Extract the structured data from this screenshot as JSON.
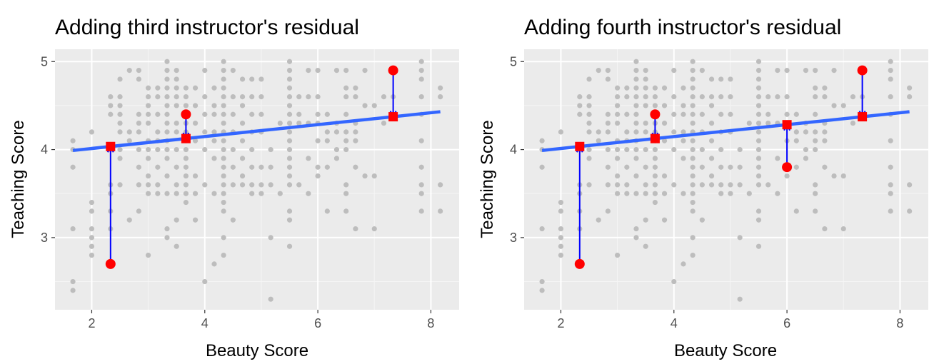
{
  "colors": {
    "panel_background": "#ebebeb",
    "grid_major": "#ffffff",
    "grid_minor": "#f5f5f5",
    "points": "#bdbdbd",
    "regression_line": "#3366ff",
    "residual_arrow": "#0000ff",
    "observed_marker": "#ff0000",
    "fitted_marker": "#ff0000"
  },
  "chart_data": [
    {
      "type": "scatter",
      "title": "Adding third instructor's residual",
      "xlabel": "Beauty Score",
      "ylabel": "Teaching Score",
      "xlim": [
        1.35,
        8.5
      ],
      "ylim": [
        2.18,
        5.14
      ],
      "xticks": [
        2,
        4,
        6,
        8
      ],
      "yticks": [
        3,
        4,
        5
      ],
      "grid": true,
      "regression_line": {
        "x": [
          1.667,
          8.167
        ],
        "y": [
          3.99,
          4.43
        ]
      },
      "highlight_observed": [
        {
          "x": 2.333,
          "y": 2.7
        },
        {
          "x": 3.667,
          "y": 4.4
        },
        {
          "x": 7.333,
          "y": 4.9
        }
      ],
      "highlight_fitted": [
        {
          "x": 2.333,
          "y": 4.035
        },
        {
          "x": 3.667,
          "y": 4.125
        },
        {
          "x": 7.333,
          "y": 4.373
        }
      ],
      "points": [
        [
          1.667,
          2.4
        ],
        [
          1.667,
          2.5
        ],
        [
          1.667,
          3.1
        ],
        [
          1.667,
          3.8
        ],
        [
          1.667,
          4.0
        ],
        [
          1.667,
          4.1
        ],
        [
          2.0,
          2.8
        ],
        [
          2.0,
          2.9
        ],
        [
          2.0,
          3.0
        ],
        [
          2.0,
          3.1
        ],
        [
          2.0,
          3.3
        ],
        [
          2.0,
          3.4
        ],
        [
          2.0,
          4.2
        ],
        [
          2.333,
          3.1
        ],
        [
          2.333,
          3.3
        ],
        [
          2.333,
          3.5
        ],
        [
          2.333,
          3.6
        ],
        [
          2.333,
          4.0
        ],
        [
          2.333,
          4.4
        ],
        [
          2.333,
          4.5
        ],
        [
          2.333,
          4.6
        ],
        [
          2.5,
          3.6
        ],
        [
          2.5,
          3.9
        ],
        [
          2.5,
          4.0
        ],
        [
          2.5,
          4.2
        ],
        [
          2.5,
          4.3
        ],
        [
          2.5,
          4.4
        ],
        [
          2.5,
          4.5
        ],
        [
          2.5,
          4.6
        ],
        [
          2.5,
          4.8
        ],
        [
          2.667,
          3.2
        ],
        [
          2.667,
          4.1
        ],
        [
          2.667,
          4.2
        ],
        [
          2.667,
          4.9
        ],
        [
          2.833,
          3.3
        ],
        [
          2.833,
          3.6
        ],
        [
          2.833,
          3.8
        ],
        [
          2.833,
          4.0
        ],
        [
          2.833,
          4.2
        ],
        [
          2.833,
          4.3
        ],
        [
          2.833,
          4.4
        ],
        [
          2.833,
          4.8
        ],
        [
          2.833,
          4.9
        ],
        [
          3.0,
          2.8
        ],
        [
          3.0,
          3.5
        ],
        [
          3.0,
          3.6
        ],
        [
          3.0,
          3.7
        ],
        [
          3.0,
          3.9
        ],
        [
          3.0,
          4.0
        ],
        [
          3.0,
          4.1
        ],
        [
          3.0,
          4.3
        ],
        [
          3.0,
          4.4
        ],
        [
          3.0,
          4.5
        ],
        [
          3.0,
          4.6
        ],
        [
          3.0,
          4.7
        ],
        [
          3.167,
          3.5
        ],
        [
          3.167,
          3.6
        ],
        [
          3.167,
          3.8
        ],
        [
          3.167,
          4.0
        ],
        [
          3.167,
          4.1
        ],
        [
          3.167,
          4.2
        ],
        [
          3.167,
          4.4
        ],
        [
          3.167,
          4.6
        ],
        [
          3.167,
          4.7
        ],
        [
          3.333,
          3.0
        ],
        [
          3.333,
          3.1
        ],
        [
          3.333,
          3.5
        ],
        [
          3.333,
          3.7
        ],
        [
          3.333,
          3.9
        ],
        [
          3.333,
          4.0
        ],
        [
          3.333,
          4.1
        ],
        [
          3.333,
          4.2
        ],
        [
          3.333,
          4.3
        ],
        [
          3.333,
          4.4
        ],
        [
          3.333,
          4.5
        ],
        [
          3.333,
          4.6
        ],
        [
          3.333,
          4.7
        ],
        [
          3.333,
          4.8
        ],
        [
          3.333,
          4.9
        ],
        [
          3.333,
          5.0
        ],
        [
          3.5,
          2.9
        ],
        [
          3.5,
          3.2
        ],
        [
          3.5,
          3.5
        ],
        [
          3.5,
          3.6
        ],
        [
          3.5,
          3.8
        ],
        [
          3.5,
          4.0
        ],
        [
          3.5,
          4.2
        ],
        [
          3.5,
          4.3
        ],
        [
          3.5,
          4.5
        ],
        [
          3.5,
          4.6
        ],
        [
          3.5,
          4.7
        ],
        [
          3.5,
          4.8
        ],
        [
          3.5,
          4.9
        ],
        [
          3.667,
          3.4
        ],
        [
          3.667,
          3.5
        ],
        [
          3.667,
          3.6
        ],
        [
          3.667,
          3.7
        ],
        [
          3.667,
          3.8
        ],
        [
          3.667,
          3.9
        ],
        [
          3.667,
          4.0
        ],
        [
          3.667,
          4.1
        ],
        [
          3.667,
          4.2
        ],
        [
          3.667,
          4.3
        ],
        [
          3.667,
          4.5
        ],
        [
          3.667,
          4.6
        ],
        [
          3.667,
          4.7
        ],
        [
          3.833,
          3.2
        ],
        [
          3.833,
          3.5
        ],
        [
          3.833,
          3.7
        ],
        [
          3.833,
          4.1
        ],
        [
          3.833,
          4.3
        ],
        [
          3.833,
          4.5
        ],
        [
          3.833,
          4.7
        ],
        [
          4.0,
          2.5
        ],
        [
          4.0,
          3.6
        ],
        [
          4.0,
          4.0
        ],
        [
          4.0,
          4.2
        ],
        [
          4.0,
          4.4
        ],
        [
          4.0,
          4.6
        ],
        [
          4.0,
          4.9
        ],
        [
          4.167,
          2.7
        ],
        [
          4.167,
          3.5
        ],
        [
          4.167,
          3.9
        ],
        [
          4.167,
          4.1
        ],
        [
          4.167,
          4.2
        ],
        [
          4.167,
          4.4
        ],
        [
          4.167,
          4.5
        ],
        [
          4.167,
          4.7
        ],
        [
          4.333,
          2.8
        ],
        [
          4.333,
          3.0
        ],
        [
          4.333,
          3.3
        ],
        [
          4.333,
          3.4
        ],
        [
          4.333,
          3.5
        ],
        [
          4.333,
          3.6
        ],
        [
          4.333,
          3.7
        ],
        [
          4.333,
          3.8
        ],
        [
          4.333,
          3.9
        ],
        [
          4.333,
          4.0
        ],
        [
          4.333,
          4.1
        ],
        [
          4.333,
          4.2
        ],
        [
          4.333,
          4.3
        ],
        [
          4.333,
          4.4
        ],
        [
          4.333,
          4.5
        ],
        [
          4.333,
          4.6
        ],
        [
          4.333,
          4.7
        ],
        [
          4.333,
          4.8
        ],
        [
          4.333,
          4.9
        ],
        [
          4.333,
          5.0
        ],
        [
          4.5,
          3.2
        ],
        [
          4.5,
          3.6
        ],
        [
          4.5,
          3.8
        ],
        [
          4.5,
          4.0
        ],
        [
          4.5,
          4.2
        ],
        [
          4.5,
          4.4
        ],
        [
          4.5,
          4.6
        ],
        [
          4.5,
          4.9
        ],
        [
          4.667,
          3.6
        ],
        [
          4.667,
          3.7
        ],
        [
          4.667,
          3.9
        ],
        [
          4.667,
          4.1
        ],
        [
          4.667,
          4.3
        ],
        [
          4.667,
          4.5
        ],
        [
          4.667,
          4.6
        ],
        [
          4.667,
          4.8
        ],
        [
          4.833,
          3.5
        ],
        [
          4.833,
          3.6
        ],
        [
          4.833,
          3.8
        ],
        [
          4.833,
          4.0
        ],
        [
          4.833,
          4.2
        ],
        [
          4.833,
          4.4
        ],
        [
          4.833,
          4.6
        ],
        [
          4.833,
          4.8
        ],
        [
          5.0,
          3.5
        ],
        [
          5.0,
          3.6
        ],
        [
          5.0,
          3.8
        ],
        [
          5.0,
          4.2
        ],
        [
          5.0,
          4.4
        ],
        [
          5.0,
          4.6
        ],
        [
          5.0,
          4.8
        ],
        [
          5.167,
          2.3
        ],
        [
          5.167,
          3.0
        ],
        [
          5.167,
          3.6
        ],
        [
          5.167,
          3.8
        ],
        [
          5.167,
          4.0
        ],
        [
          5.333,
          3.5
        ],
        [
          5.333,
          4.3
        ],
        [
          5.5,
          2.9
        ],
        [
          5.5,
          3.2
        ],
        [
          5.5,
          3.3
        ],
        [
          5.5,
          3.6
        ],
        [
          5.5,
          3.7
        ],
        [
          5.5,
          3.8
        ],
        [
          5.5,
          3.9
        ],
        [
          5.5,
          4.0
        ],
        [
          5.5,
          4.1
        ],
        [
          5.5,
          4.2
        ],
        [
          5.5,
          4.3
        ],
        [
          5.5,
          4.4
        ],
        [
          5.5,
          4.5
        ],
        [
          5.5,
          4.6
        ],
        [
          5.5,
          4.7
        ],
        [
          5.5,
          4.8
        ],
        [
          5.5,
          4.9
        ],
        [
          5.5,
          5.0
        ],
        [
          5.667,
          3.6
        ],
        [
          5.667,
          4.3
        ],
        [
          5.667,
          4.4
        ],
        [
          5.667,
          4.6
        ],
        [
          5.833,
          3.5
        ],
        [
          5.833,
          3.9
        ],
        [
          5.833,
          4.3
        ],
        [
          5.833,
          4.6
        ],
        [
          5.833,
          4.9
        ],
        [
          6.0,
          3.7
        ],
        [
          6.0,
          3.8
        ],
        [
          6.0,
          4.1
        ],
        [
          6.0,
          4.3
        ],
        [
          6.0,
          4.4
        ],
        [
          6.0,
          4.6
        ],
        [
          6.0,
          4.9
        ],
        [
          6.167,
          3.3
        ],
        [
          6.167,
          3.8
        ],
        [
          6.167,
          4.1
        ],
        [
          6.167,
          4.2
        ],
        [
          6.167,
          4.4
        ],
        [
          6.333,
          3.9
        ],
        [
          6.333,
          4.0
        ],
        [
          6.333,
          4.2
        ],
        [
          6.333,
          4.3
        ],
        [
          6.333,
          4.9
        ],
        [
          6.5,
          3.3
        ],
        [
          6.5,
          3.5
        ],
        [
          6.5,
          3.6
        ],
        [
          6.5,
          4.0
        ],
        [
          6.5,
          4.1
        ],
        [
          6.5,
          4.2
        ],
        [
          6.5,
          4.4
        ],
        [
          6.5,
          4.6
        ],
        [
          6.5,
          4.7
        ],
        [
          6.5,
          4.9
        ],
        [
          6.667,
          3.1
        ],
        [
          6.667,
          3.8
        ],
        [
          6.667,
          4.1
        ],
        [
          6.667,
          4.2
        ],
        [
          6.667,
          4.3
        ],
        [
          6.667,
          4.6
        ],
        [
          6.667,
          4.7
        ],
        [
          6.833,
          3.7
        ],
        [
          6.833,
          4.5
        ],
        [
          6.833,
          4.9
        ],
        [
          7.0,
          3.1
        ],
        [
          7.0,
          3.7
        ],
        [
          7.0,
          4.5
        ],
        [
          7.167,
          4.3
        ],
        [
          7.167,
          4.6
        ],
        [
          7.333,
          4.4
        ],
        [
          7.333,
          4.6
        ],
        [
          7.833,
          3.3
        ],
        [
          7.833,
          3.5
        ],
        [
          7.833,
          3.6
        ],
        [
          7.833,
          3.8
        ],
        [
          7.833,
          4.1
        ],
        [
          7.833,
          4.4
        ],
        [
          7.833,
          4.6
        ],
        [
          7.833,
          4.8
        ],
        [
          7.833,
          4.9
        ],
        [
          7.833,
          5.0
        ],
        [
          8.167,
          3.3
        ],
        [
          8.167,
          3.6
        ],
        [
          8.167,
          4.6
        ],
        [
          8.167,
          4.7
        ]
      ]
    },
    {
      "type": "scatter",
      "title": "Adding fourth instructor's residual",
      "xlabel": "Beauty Score",
      "ylabel": "Teaching Score",
      "xlim": [
        1.35,
        8.5
      ],
      "ylim": [
        2.18,
        5.14
      ],
      "xticks": [
        2,
        4,
        6,
        8
      ],
      "yticks": [
        3,
        4,
        5
      ],
      "grid": true,
      "regression_line": {
        "x": [
          1.667,
          8.167
        ],
        "y": [
          3.99,
          4.43
        ]
      },
      "highlight_observed": [
        {
          "x": 2.333,
          "y": 2.7
        },
        {
          "x": 3.667,
          "y": 4.4
        },
        {
          "x": 6.0,
          "y": 3.8
        },
        {
          "x": 7.333,
          "y": 4.9
        }
      ],
      "highlight_fitted": [
        {
          "x": 2.333,
          "y": 4.035
        },
        {
          "x": 3.667,
          "y": 4.125
        },
        {
          "x": 6.0,
          "y": 4.283
        },
        {
          "x": 7.333,
          "y": 4.373
        }
      ],
      "points": "same_as_first"
    }
  ]
}
